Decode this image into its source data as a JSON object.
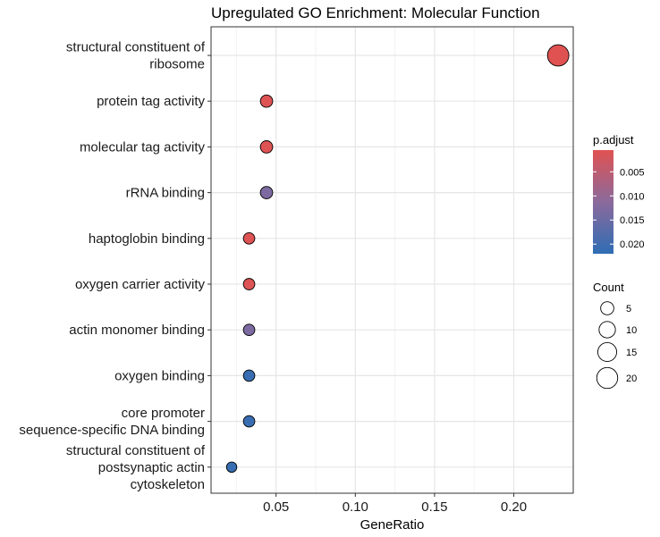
{
  "chart_data": {
    "type": "scatter",
    "title": "Upregulated GO Enrichment: Molecular Function",
    "xlabel": "GeneRatio",
    "ylabel": "",
    "xlim": [
      0.009,
      0.2375
    ],
    "x_ticks": [
      "0.05",
      "0.10",
      "0.15",
      "0.20"
    ],
    "grid": true,
    "categories": [
      "structural constituent of ribosome",
      "protein tag activity",
      "molecular tag activity",
      "rRNA binding",
      "haptoglobin binding",
      "oxygen carrier activity",
      "actin monomer binding",
      "oxygen binding",
      "core promoter sequence-specific DNA binding",
      "structural constituent of postsynaptic actin cytoskeleton"
    ],
    "category_lines": [
      [
        "structural constituent of",
        "ribosome"
      ],
      [
        "protein tag activity"
      ],
      [
        "molecular tag activity"
      ],
      [
        "rRNA binding"
      ],
      [
        "haptoglobin binding"
      ],
      [
        "oxygen carrier activity"
      ],
      [
        "actin monomer binding"
      ],
      [
        "oxygen binding"
      ],
      [
        "core promoter",
        "sequence-specific DNA binding"
      ],
      [
        "structural constituent of",
        "postsynaptic actin",
        "cytoskeleton"
      ]
    ],
    "series": [
      {
        "x": [
          0.228,
          0.044,
          0.044,
          0.044,
          0.033,
          0.033,
          0.033,
          0.033,
          0.033,
          0.022
        ],
        "count": [
          21,
          4,
          4,
          4,
          3,
          3,
          3,
          3,
          3,
          2
        ],
        "p_adjust": [
          0.0005,
          0.0008,
          0.0008,
          0.013,
          0.0008,
          0.0008,
          0.013,
          0.021,
          0.021,
          0.021
        ]
      }
    ],
    "legend": {
      "position": "right",
      "color": {
        "title": "p.adjust",
        "ticks": [
          "0.005",
          "0.010",
          "0.015",
          "0.020"
        ],
        "tick_values": [
          0.005,
          0.01,
          0.015,
          0.02
        ],
        "range": [
          0.0005,
          0.022
        ],
        "low_color": "#e05252",
        "mid_color": "#8b6a9c",
        "high_color": "#2f6db4"
      },
      "size": {
        "title": "Count",
        "values": [
          5,
          10,
          15,
          20
        ],
        "labels": [
          "5",
          "10",
          "15",
          "20"
        ]
      }
    }
  }
}
